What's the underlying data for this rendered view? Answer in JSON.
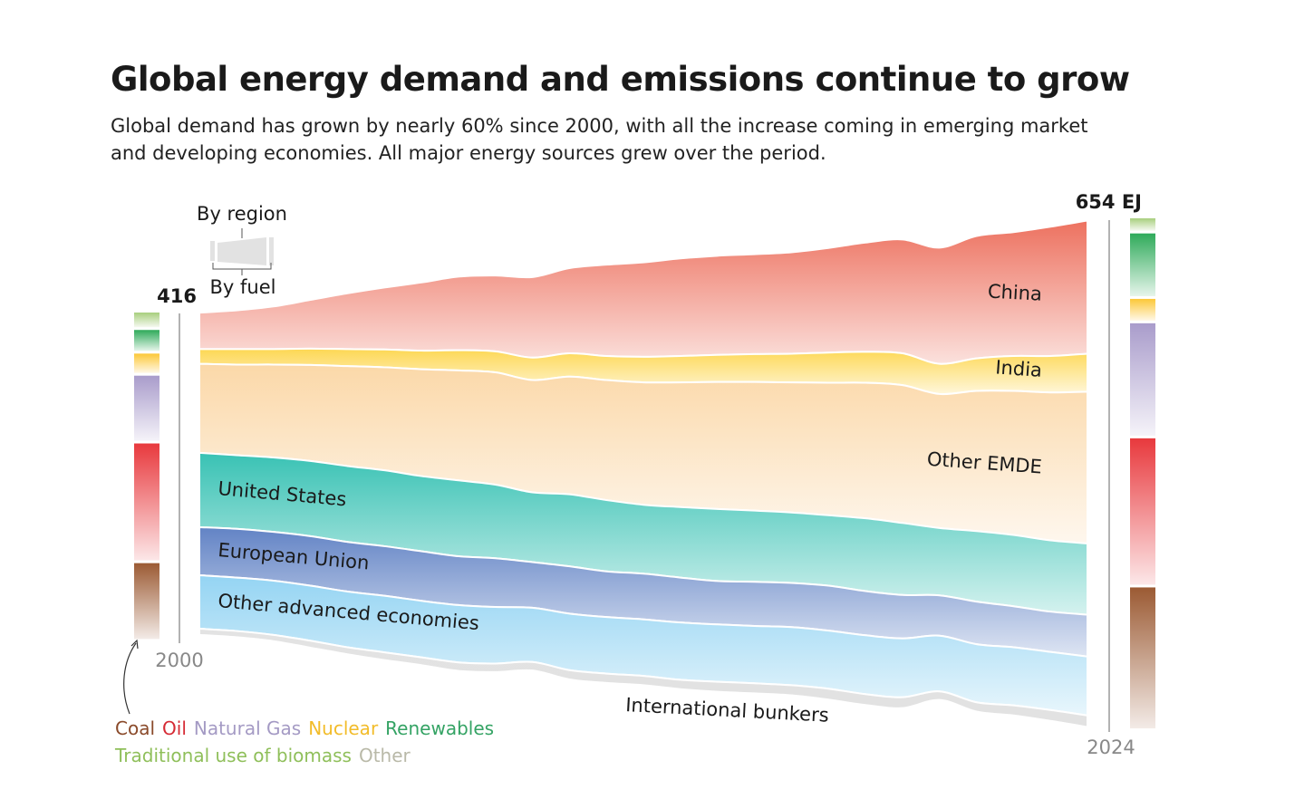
{
  "header": {
    "title": "Global energy demand and emissions continue to grow",
    "subtitle": "Global demand has grown by nearly 60% since 2000, with all the increase coming in emerging market and developing economies. All major energy sources grew over the period."
  },
  "inset": {
    "top_label": "By region",
    "bottom_label": "By fuel"
  },
  "chart_data": {
    "type": "area",
    "subtype": "streamgraph",
    "unit": "EJ",
    "x": [
      2000,
      2001,
      2002,
      2003,
      2004,
      2005,
      2006,
      2007,
      2008,
      2009,
      2010,
      2011,
      2012,
      2013,
      2014,
      2015,
      2016,
      2017,
      2018,
      2019,
      2020,
      2021,
      2022,
      2023,
      2024
    ],
    "x_tick_labels": [
      "2000",
      "2024"
    ],
    "total_labels": {
      "start": "416",
      "end": "654 EJ"
    },
    "series": [
      {
        "name": "China",
        "color": "#ec6a57",
        "values": [
          47,
          50,
          55,
          63,
          72,
          80,
          88,
          95,
          98,
          104,
          110,
          118,
          122,
          126,
          128,
          129,
          131,
          135,
          141,
          147,
          150,
          158,
          160,
          167,
          172
        ]
      },
      {
        "name": "India",
        "color": "#fdd54a",
        "values": [
          19,
          20,
          20,
          21,
          22,
          23,
          24,
          26,
          27,
          29,
          30,
          31,
          33,
          34,
          35,
          36,
          37,
          39,
          40,
          41,
          39,
          42,
          45,
          47,
          49
        ]
      },
      {
        "name": "Other EMDE",
        "color": "#fbd8a8",
        "values": [
          115,
          117,
          120,
          124,
          129,
          133,
          138,
          142,
          145,
          145,
          152,
          155,
          158,
          161,
          164,
          166,
          168,
          171,
          175,
          178,
          173,
          181,
          186,
          191,
          196
        ]
      },
      {
        "name": "United States",
        "color": "#2fbfb0",
        "values": [
          96,
          95,
          96,
          97,
          98,
          98,
          97,
          98,
          95,
          90,
          93,
          92,
          89,
          91,
          93,
          92,
          91,
          91,
          94,
          93,
          87,
          91,
          92,
          92,
          92
        ]
      },
      {
        "name": "European Union",
        "color": "#5a7cc2",
        "values": [
          62,
          63,
          63,
          64,
          64,
          64,
          64,
          63,
          63,
          59,
          61,
          59,
          59,
          58,
          56,
          57,
          57,
          58,
          57,
          56,
          52,
          55,
          53,
          52,
          54
        ]
      },
      {
        "name": "Other advanced economies",
        "color": "#8ed2f2",
        "values": [
          69,
          69,
          70,
          71,
          72,
          73,
          73,
          74,
          73,
          70,
          73,
          73,
          73,
          74,
          74,
          74,
          75,
          75,
          76,
          76,
          72,
          75,
          75,
          75,
          76
        ]
      },
      {
        "name": "International bunkers",
        "color": "#e2e2e2",
        "values": [
          8,
          8,
          8,
          9,
          9,
          10,
          10,
          11,
          11,
          11,
          12,
          12,
          12,
          12,
          13,
          13,
          13,
          14,
          14,
          14,
          11,
          12,
          13,
          14,
          15
        ]
      }
    ],
    "fuel_bars": {
      "fuels": [
        {
          "name": "Traditional use of biomass",
          "color": "#a8cf7e"
        },
        {
          "name": "Renewables",
          "color": "#2faa5a"
        },
        {
          "name": "Nuclear",
          "color": "#fcc838"
        },
        {
          "name": "Natural Gas",
          "color": "#a99ccb"
        },
        {
          "name": "Oil",
          "color": "#e8393d"
        },
        {
          "name": "Coal",
          "color": "#9b5a33"
        }
      ],
      "2000": [
        19,
        27,
        25,
        84,
        151,
        98
      ],
      "2024": [
        16,
        81,
        28,
        145,
        189,
        182
      ]
    },
    "legend": [
      {
        "label": "Coal",
        "color": "#8a4a2a"
      },
      {
        "label": "Oil",
        "color": "#d62b35"
      },
      {
        "label": "Natural Gas",
        "color": "#a49ac4"
      },
      {
        "label": "Nuclear",
        "color": "#f2bc2a"
      },
      {
        "label": "Renewables",
        "color": "#34a364"
      },
      {
        "label": "Traditional use of biomass",
        "color": "#8fbf5a"
      },
      {
        "label": "Other",
        "color": "#b9b9a8"
      }
    ],
    "legend_placement": "bottom-left",
    "grid": false
  }
}
